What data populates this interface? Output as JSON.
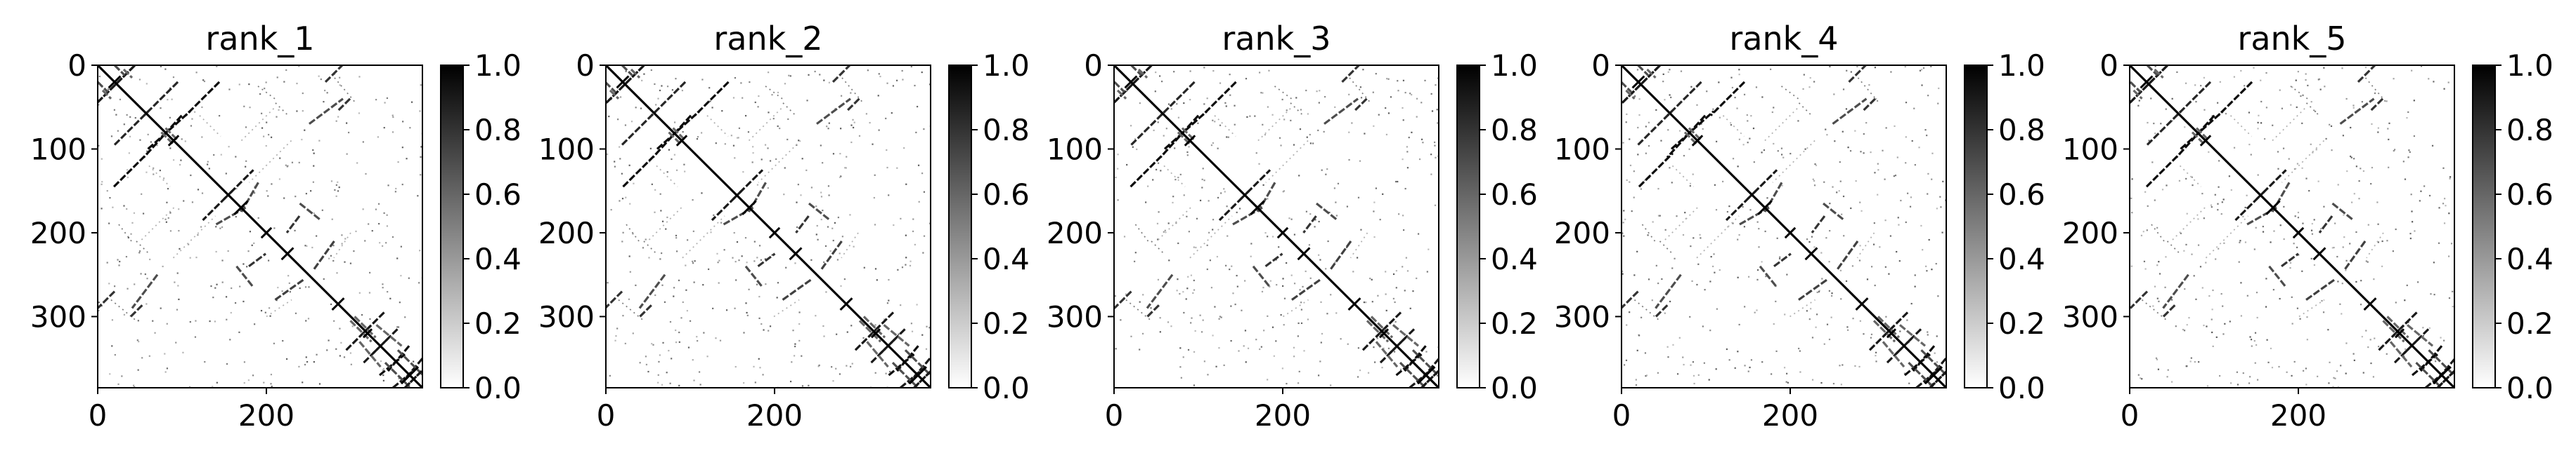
{
  "chart_data": [
    {
      "type": "heatmap",
      "title": "rank_1",
      "matrix_size": 385,
      "x_ticks": [
        "0",
        "200"
      ],
      "y_ticks": [
        "0",
        "100",
        "200",
        "300"
      ],
      "colorbar": {
        "ticks": [
          "0.0",
          "0.2",
          "0.4",
          "0.6",
          "0.8",
          "1.0"
        ],
        "range": [
          0.0,
          1.0
        ],
        "colormap": "greys"
      }
    },
    {
      "type": "heatmap",
      "title": "rank_2",
      "matrix_size": 385,
      "x_ticks": [
        "0",
        "200"
      ],
      "y_ticks": [
        "0",
        "100",
        "200",
        "300"
      ],
      "colorbar": {
        "ticks": [
          "0.0",
          "0.2",
          "0.4",
          "0.6",
          "0.8",
          "1.0"
        ],
        "range": [
          0.0,
          1.0
        ],
        "colormap": "greys"
      }
    },
    {
      "type": "heatmap",
      "title": "rank_3",
      "matrix_size": 385,
      "x_ticks": [
        "0",
        "200"
      ],
      "y_ticks": [
        "0",
        "100",
        "200",
        "300"
      ],
      "colorbar": {
        "ticks": [
          "0.0",
          "0.2",
          "0.4",
          "0.6",
          "0.8",
          "1.0"
        ],
        "range": [
          0.0,
          1.0
        ],
        "colormap": "greys"
      }
    },
    {
      "type": "heatmap",
      "title": "rank_4",
      "matrix_size": 385,
      "x_ticks": [
        "0",
        "200"
      ],
      "y_ticks": [
        "0",
        "100",
        "200",
        "300"
      ],
      "colorbar": {
        "ticks": [
          "0.0",
          "0.2",
          "0.4",
          "0.6",
          "0.8",
          "1.0"
        ],
        "range": [
          0.0,
          1.0
        ],
        "colormap": "greys"
      }
    },
    {
      "type": "heatmap",
      "title": "rank_5",
      "matrix_size": 385,
      "x_ticks": [
        "0",
        "200"
      ],
      "y_ticks": [
        "0",
        "100",
        "200",
        "300"
      ],
      "colorbar": {
        "ticks": [
          "0.0",
          "0.2",
          "0.4",
          "0.6",
          "0.8",
          "1.0"
        ],
        "range": [
          0.0,
          1.0
        ],
        "colormap": "greys"
      }
    }
  ],
  "contact_segments": [
    {
      "i": [
        0,
        45
      ],
      "j": [
        45,
        0
      ],
      "v": 0.9
    },
    {
      "i": [
        0,
        12
      ],
      "j": [
        20,
        32
      ],
      "v": 0.7
    },
    {
      "i": [
        5,
        15
      ],
      "j": [
        30,
        40
      ],
      "v": 0.6
    },
    {
      "i": [
        60,
        110
      ],
      "j": [
        100,
        55
      ],
      "v": 0.95
    },
    {
      "i": [
        75,
        90
      ],
      "j": [
        80,
        95
      ],
      "v": 0.6
    },
    {
      "i": [
        20,
        60
      ],
      "j": [
        145,
        105
      ],
      "v": 0.95
    },
    {
      "i": [
        20,
        60
      ],
      "j": [
        95,
        55
      ],
      "v": 0.85
    },
    {
      "i": [
        15,
        45
      ],
      "j": [
        280,
        305
      ],
      "v": 0.5
    },
    {
      "i": [
        150,
        185
      ],
      "j": [
        160,
        125
      ],
      "v": 0.9
    },
    {
      "i": [
        140,
        175
      ],
      "j": [
        190,
        170
      ],
      "v": 0.7
    },
    {
      "i": [
        180,
        200
      ],
      "j": [
        240,
        225
      ],
      "v": 0.8
    },
    {
      "i": [
        270,
        290
      ],
      "j": [
        20,
        0
      ],
      "v": 0.8
    },
    {
      "i": [
        250,
        290
      ],
      "j": [
        70,
        40
      ],
      "v": 0.7
    },
    {
      "i": [
        240,
        265
      ],
      "j": [
        165,
        185
      ],
      "v": 0.7
    },
    {
      "i": [
        210,
        245
      ],
      "j": [
        280,
        255
      ],
      "v": 0.75
    },
    {
      "i": [
        40,
        55
      ],
      "j": [
        300,
        285
      ],
      "v": 0.8
    },
    {
      "i": [
        25,
        40
      ],
      "j": [
        190,
        210
      ],
      "v": 0.5
    },
    {
      "i": [
        45,
        60
      ],
      "j": [
        210,
        225
      ],
      "v": 0.5
    },
    {
      "i": [
        295,
        325
      ],
      "j": [
        340,
        310
      ],
      "v": 0.9
    },
    {
      "i": [
        315,
        345
      ],
      "j": [
        355,
        325
      ],
      "v": 0.9
    },
    {
      "i": [
        335,
        365
      ],
      "j": [
        370,
        345
      ],
      "v": 0.95
    },
    {
      "i": [
        350,
        380
      ],
      "j": [
        385,
        360
      ],
      "v": 0.9
    },
    {
      "i": [
        355,
        385
      ],
      "j": [
        340,
        370
      ],
      "v": 0.7
    },
    {
      "i": [
        305,
        330
      ],
      "j": [
        300,
        325
      ],
      "v": 0.6
    },
    {
      "i": [
        330,
        360
      ],
      "j": [
        310,
        335
      ],
      "v": 0.6
    },
    {
      "i": [
        365,
        385
      ],
      "j": [
        385,
        365
      ],
      "v": 0.9
    },
    {
      "i": [
        200,
        230
      ],
      "j": [
        300,
        280
      ],
      "v": 0.3
    },
    {
      "i": [
        120,
        145
      ],
      "j": [
        60,
        85
      ],
      "v": 0.3
    },
    {
      "i": [
        90,
        140
      ],
      "j": [
        230,
        180
      ],
      "v": 0.3
    },
    {
      "i": [
        170,
        210
      ],
      "j": [
        90,
        50
      ],
      "v": 0.3
    }
  ],
  "diagonal_blocks": [
    {
      "center": 20,
      "half": 7
    },
    {
      "center": 90,
      "half": 6
    },
    {
      "center": 170,
      "half": 8
    },
    {
      "center": 200,
      "half": 6
    },
    {
      "center": 225,
      "half": 7
    },
    {
      "center": 285,
      "half": 7
    },
    {
      "center": 320,
      "half": 5
    },
    {
      "center": 370,
      "half": 10
    }
  ]
}
